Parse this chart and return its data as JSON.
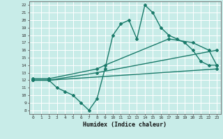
{
  "line1_x": [
    0,
    2,
    3,
    4,
    5,
    6,
    7,
    8,
    9,
    10,
    11,
    12,
    13,
    14,
    15,
    16,
    17,
    18,
    19,
    20,
    21,
    22,
    23
  ],
  "line1_y": [
    12,
    12,
    11,
    10.5,
    10,
    9,
    8,
    9.5,
    13.5,
    18,
    19.5,
    20,
    17.5,
    22,
    21,
    19,
    18,
    17.5,
    17,
    16,
    14.5,
    14,
    14
  ],
  "line2_x": [
    0,
    2,
    8,
    9,
    17,
    20,
    22,
    23
  ],
  "line2_y": [
    12.2,
    12.2,
    13.5,
    14,
    17.5,
    17,
    16,
    14
  ],
  "line3_x": [
    0,
    2,
    8,
    23
  ],
  "line3_y": [
    12.0,
    12.0,
    13.0,
    16.0
  ],
  "line4_x": [
    0,
    2,
    23
  ],
  "line4_y": [
    12.0,
    12.0,
    13.5
  ],
  "color": "#1a7a6a",
  "bg_color": "#c8ece8",
  "grid_color": "#b8ddd8",
  "xlabel": "Humidex (Indice chaleur)",
  "xlim": [
    -0.5,
    23.5
  ],
  "ylim": [
    7.5,
    22.5
  ],
  "xticks": [
    0,
    1,
    2,
    3,
    4,
    5,
    6,
    7,
    8,
    9,
    10,
    11,
    12,
    13,
    14,
    15,
    16,
    17,
    18,
    19,
    20,
    21,
    22,
    23
  ],
  "yticks": [
    8,
    9,
    10,
    11,
    12,
    13,
    14,
    15,
    16,
    17,
    18,
    19,
    20,
    21,
    22
  ],
  "marker": "D",
  "markersize": 2.5,
  "linewidth": 1.0
}
